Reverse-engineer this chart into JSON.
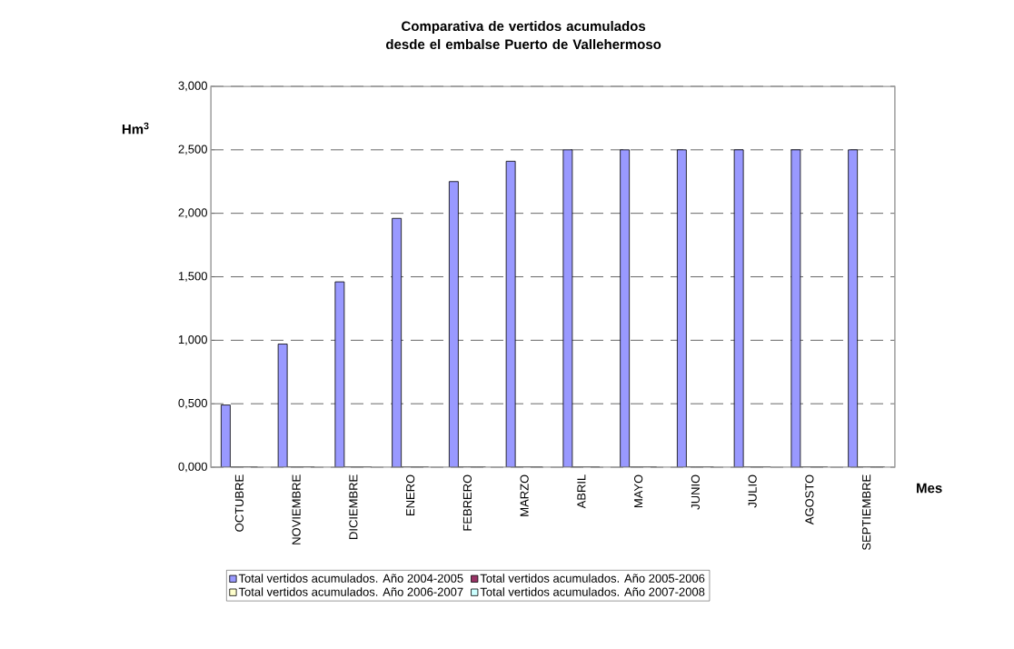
{
  "chart_data": {
    "type": "bar",
    "title": "Comparativa de vertidos acumulados desde el embalse Puerto de Vallehermoso",
    "xlabel": "Mes",
    "ylabel": "Hm$^{3}$",
    "categories": [
      "OCTUBRE",
      "NOVIEMBRE",
      "DICIEMBRE",
      "ENERO",
      "FEBRERO",
      "MARZO",
      "ABRIL",
      "MAYO",
      "JUNIO",
      "JULIO",
      "AGOSTO",
      "SEPTIEMBRE"
    ],
    "series": [
      {
        "name": "Total vertidos acumulados. Año 2004-2005",
        "color": "#9999ff",
        "values": [
          0.49,
          0.97,
          1.46,
          1.96,
          2.25,
          2.41,
          2.5,
          2.5,
          2.5,
          2.5,
          2.5,
          2.5
        ]
      },
      {
        "name": "Total vertidos acumulados. Año 2005-2006",
        "color": "#993366",
        "values": [
          0,
          0,
          0,
          0,
          0,
          0,
          0,
          0,
          0,
          0,
          0,
          0
        ]
      },
      {
        "name": "Total vertidos acumulados. Año 2006-2007",
        "color": "#ffffcc",
        "values": [
          0,
          0,
          0,
          0,
          0,
          0,
          0,
          0,
          0,
          0,
          0,
          0
        ]
      },
      {
        "name": "Total vertidos acumulados. Año 2007-2008",
        "color": "#ccffff",
        "values": [
          0,
          0,
          0,
          0,
          0,
          0,
          0,
          0,
          0,
          0,
          0,
          0
        ]
      }
    ],
    "ylim": [
      0,
      3
    ],
    "yticks": [
      {
        "value": 0,
        "label": "0,000"
      },
      {
        "value": 0.5,
        "label": "0,500"
      },
      {
        "value": 1,
        "label": "1,000"
      },
      {
        "value": 1.5,
        "label": "1,500"
      },
      {
        "value": 2,
        "label": "2,000"
      },
      {
        "value": 2.5,
        "label": "2,500"
      },
      {
        "value": 3,
        "label": "3,000"
      }
    ],
    "grid": "y",
    "line_style": "dashed",
    "legend": "bottom"
  }
}
